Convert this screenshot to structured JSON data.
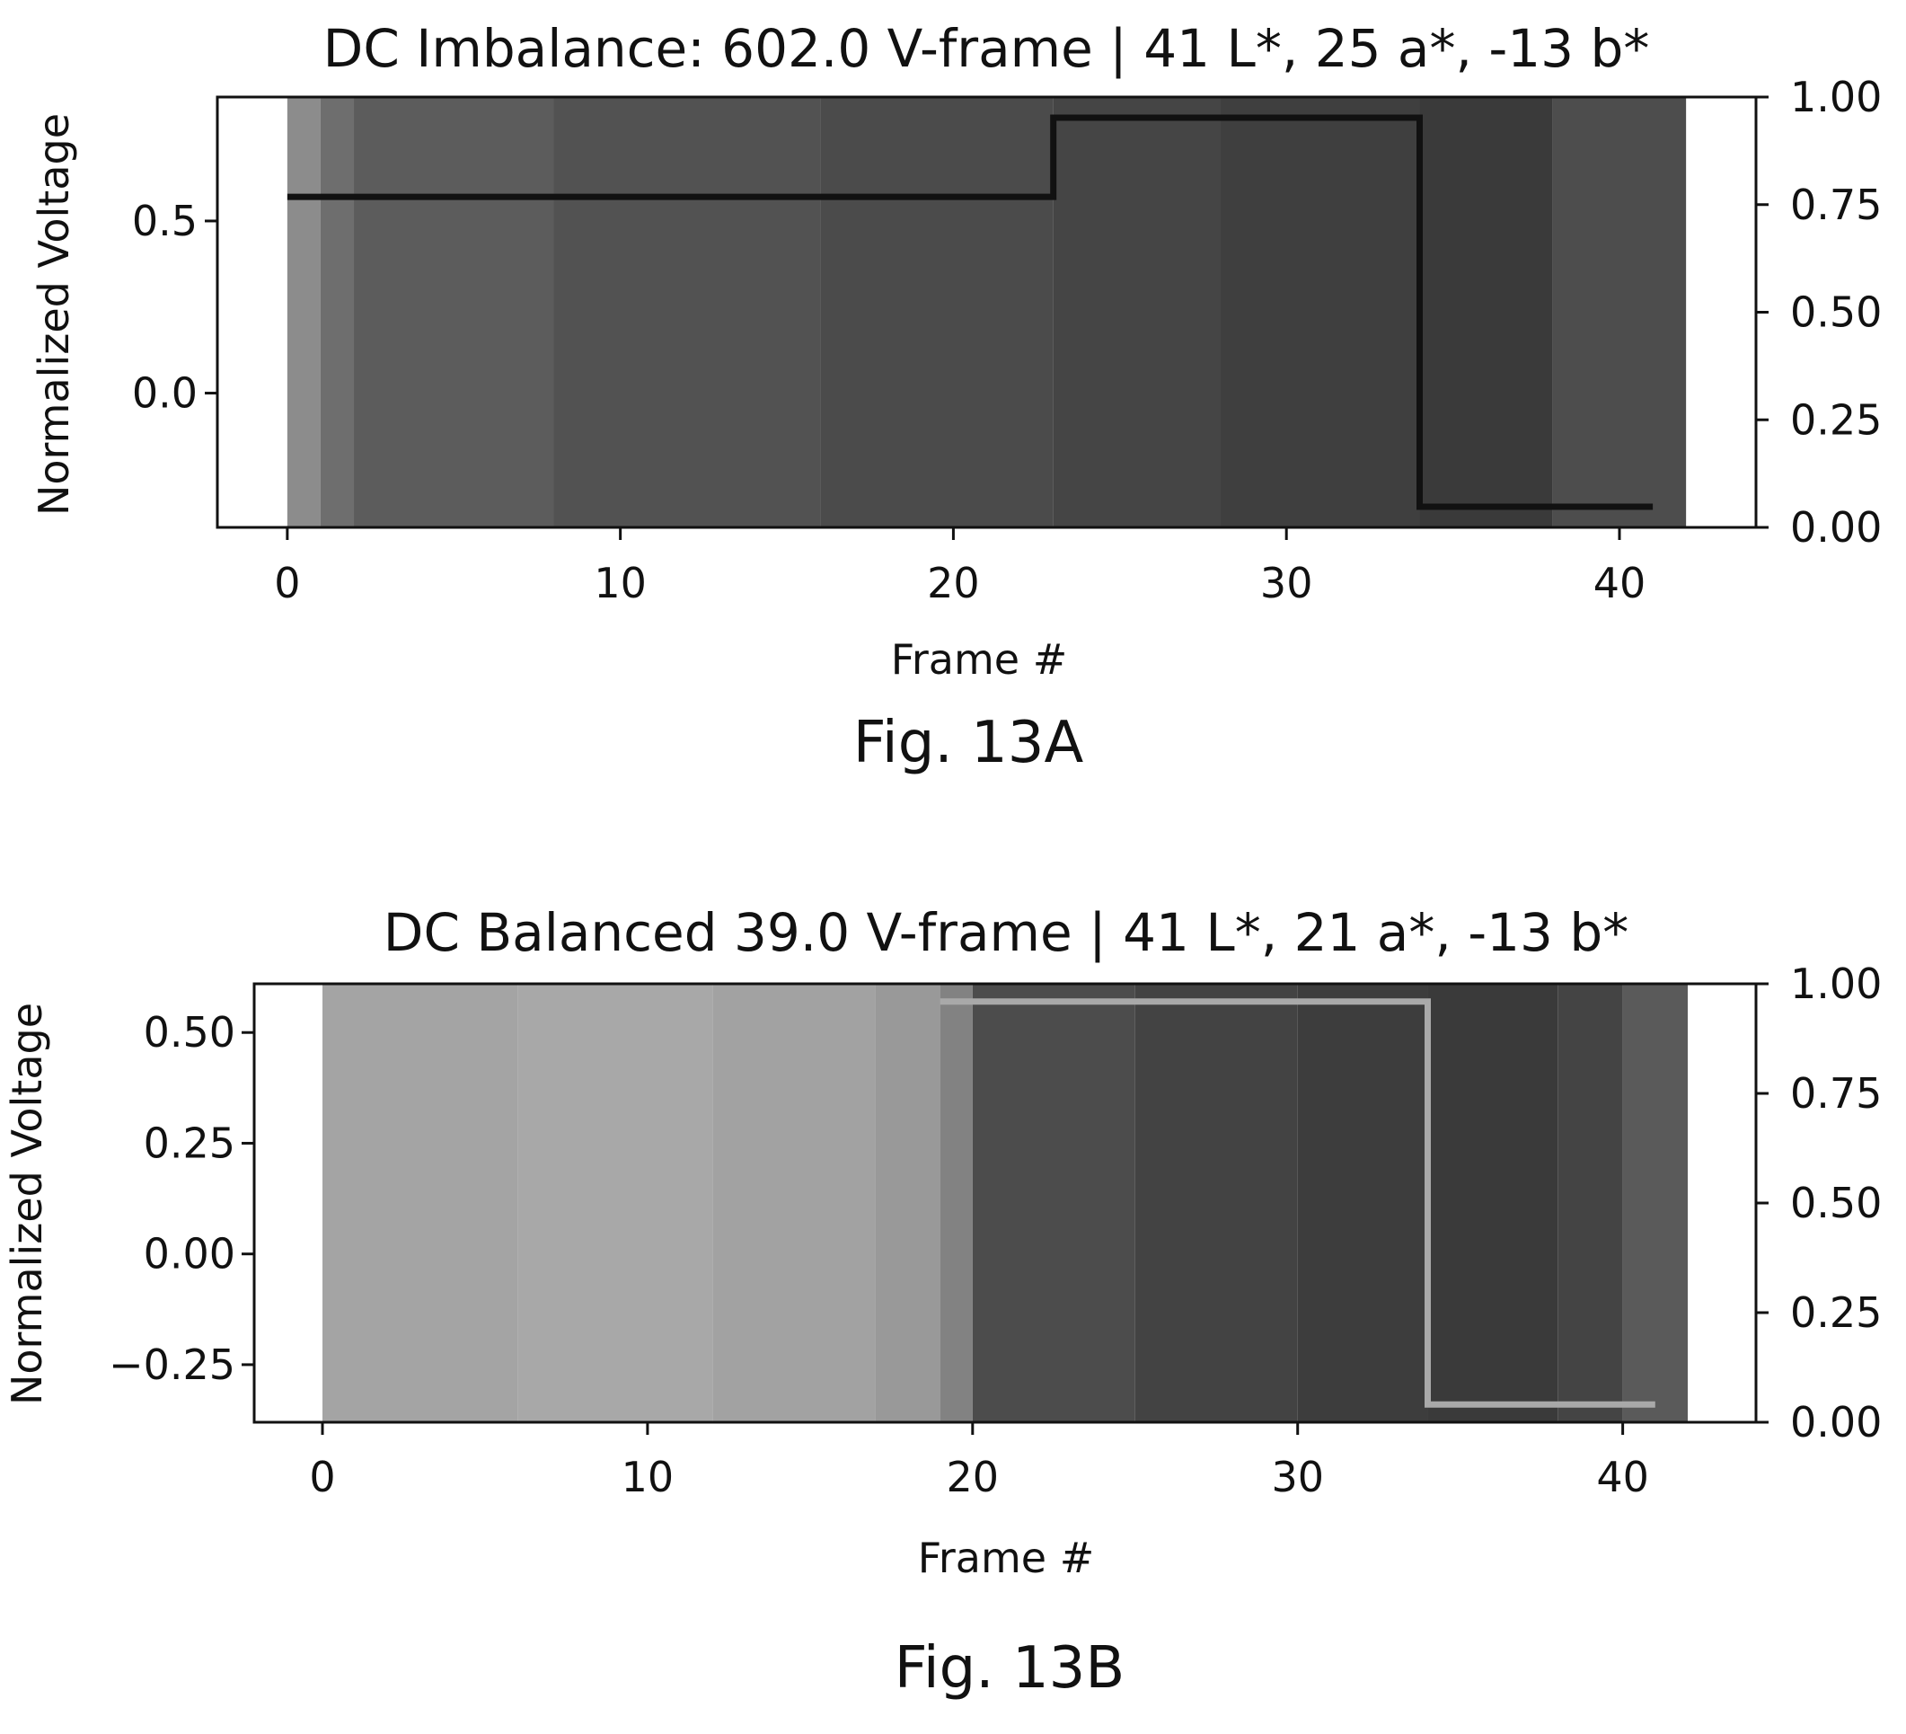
{
  "chart_data": [
    {
      "type": "line",
      "title": "DC Imbalance: 602.0 V-frame | 41 L*, 25 a*, -13 b*",
      "caption": "Fig. 13A",
      "xlabel": "Frame #",
      "ylabel": "Normalized Voltage",
      "xlim": [
        -2.1,
        44.1
      ],
      "ylim": [
        -0.39,
        0.86
      ],
      "y2lim": [
        0.0,
        1.0
      ],
      "xticks": [
        0,
        10,
        20,
        30,
        40
      ],
      "xtick_labels": [
        "0",
        "10",
        "20",
        "30",
        "40"
      ],
      "yticks": [
        0.0,
        0.5
      ],
      "ytick_labels": [
        "0.0",
        "0.5"
      ],
      "y2ticks": [
        0.0,
        0.25,
        0.5,
        0.75,
        1.0
      ],
      "y2tick_labels": [
        "0.00",
        "0.25",
        "0.50",
        "0.75",
        "1.00"
      ],
      "grid": false,
      "background_strips": [
        {
          "x0": 0,
          "x1": 1,
          "color": "#8c8c8c"
        },
        {
          "x0": 1,
          "x1": 2,
          "color": "#6e6e6e"
        },
        {
          "x0": 2,
          "x1": 8,
          "color": "#5c5c5c"
        },
        {
          "x0": 8,
          "x1": 16,
          "color": "#525252"
        },
        {
          "x0": 16,
          "x1": 23,
          "color": "#4b4b4b"
        },
        {
          "x0": 23,
          "x1": 28,
          "color": "#454545"
        },
        {
          "x0": 28,
          "x1": 34,
          "color": "#3f3f3f"
        },
        {
          "x0": 34,
          "x1": 38,
          "color": "#3a3a3a"
        },
        {
          "x0": 38,
          "x1": 42,
          "color": "#4d4d4d"
        }
      ],
      "series": [
        {
          "color": "#111111",
          "step": true,
          "x": [
            0,
            23,
            23,
            34,
            34,
            41
          ],
          "y": [
            0.57,
            0.57,
            0.8,
            0.8,
            -0.33,
            -0.33
          ]
        }
      ]
    },
    {
      "type": "line",
      "title": "DC Balanced 39.0 V-frame | 41 L*, 21 a*, -13 b*",
      "caption": "Fig. 13B",
      "xlabel": "Frame #",
      "ylabel": "Normalized Voltage",
      "xlim": [
        -2.1,
        44.1
      ],
      "ylim": [
        -0.38,
        0.61
      ],
      "y2lim": [
        0.0,
        1.0
      ],
      "xticks": [
        0,
        10,
        20,
        30,
        40
      ],
      "xtick_labels": [
        "0",
        "10",
        "20",
        "30",
        "40"
      ],
      "yticks": [
        -0.25,
        0.0,
        0.25,
        0.5
      ],
      "ytick_labels": [
        "−0.25",
        "0.00",
        "0.25",
        "0.50"
      ],
      "y2ticks": [
        0.0,
        0.25,
        0.5,
        0.75,
        1.0
      ],
      "y2tick_labels": [
        "0.00",
        "0.25",
        "0.50",
        "0.75",
        "1.00"
      ],
      "grid": false,
      "background_strips": [
        {
          "x0": 0,
          "x1": 6,
          "color": "#a4a4a4"
        },
        {
          "x0": 6,
          "x1": 12,
          "color": "#a8a8a8"
        },
        {
          "x0": 12,
          "x1": 17,
          "color": "#a2a2a2"
        },
        {
          "x0": 17,
          "x1": 19,
          "color": "#999999"
        },
        {
          "x0": 19,
          "x1": 20,
          "color": "#828282"
        },
        {
          "x0": 20,
          "x1": 25,
          "color": "#4c4c4c"
        },
        {
          "x0": 25,
          "x1": 30,
          "color": "#434343"
        },
        {
          "x0": 30,
          "x1": 34,
          "color": "#3d3d3d"
        },
        {
          "x0": 34,
          "x1": 38,
          "color": "#3a3a3a"
        },
        {
          "x0": 38,
          "x1": 40,
          "color": "#444444"
        },
        {
          "x0": 40,
          "x1": 42,
          "color": "#5a5a5a"
        }
      ],
      "series": [
        {
          "color": "#a9a9a9",
          "step": true,
          "x": [
            19,
            34,
            34,
            41
          ],
          "y": [
            0.57,
            0.57,
            -0.34,
            -0.34
          ]
        }
      ]
    }
  ]
}
